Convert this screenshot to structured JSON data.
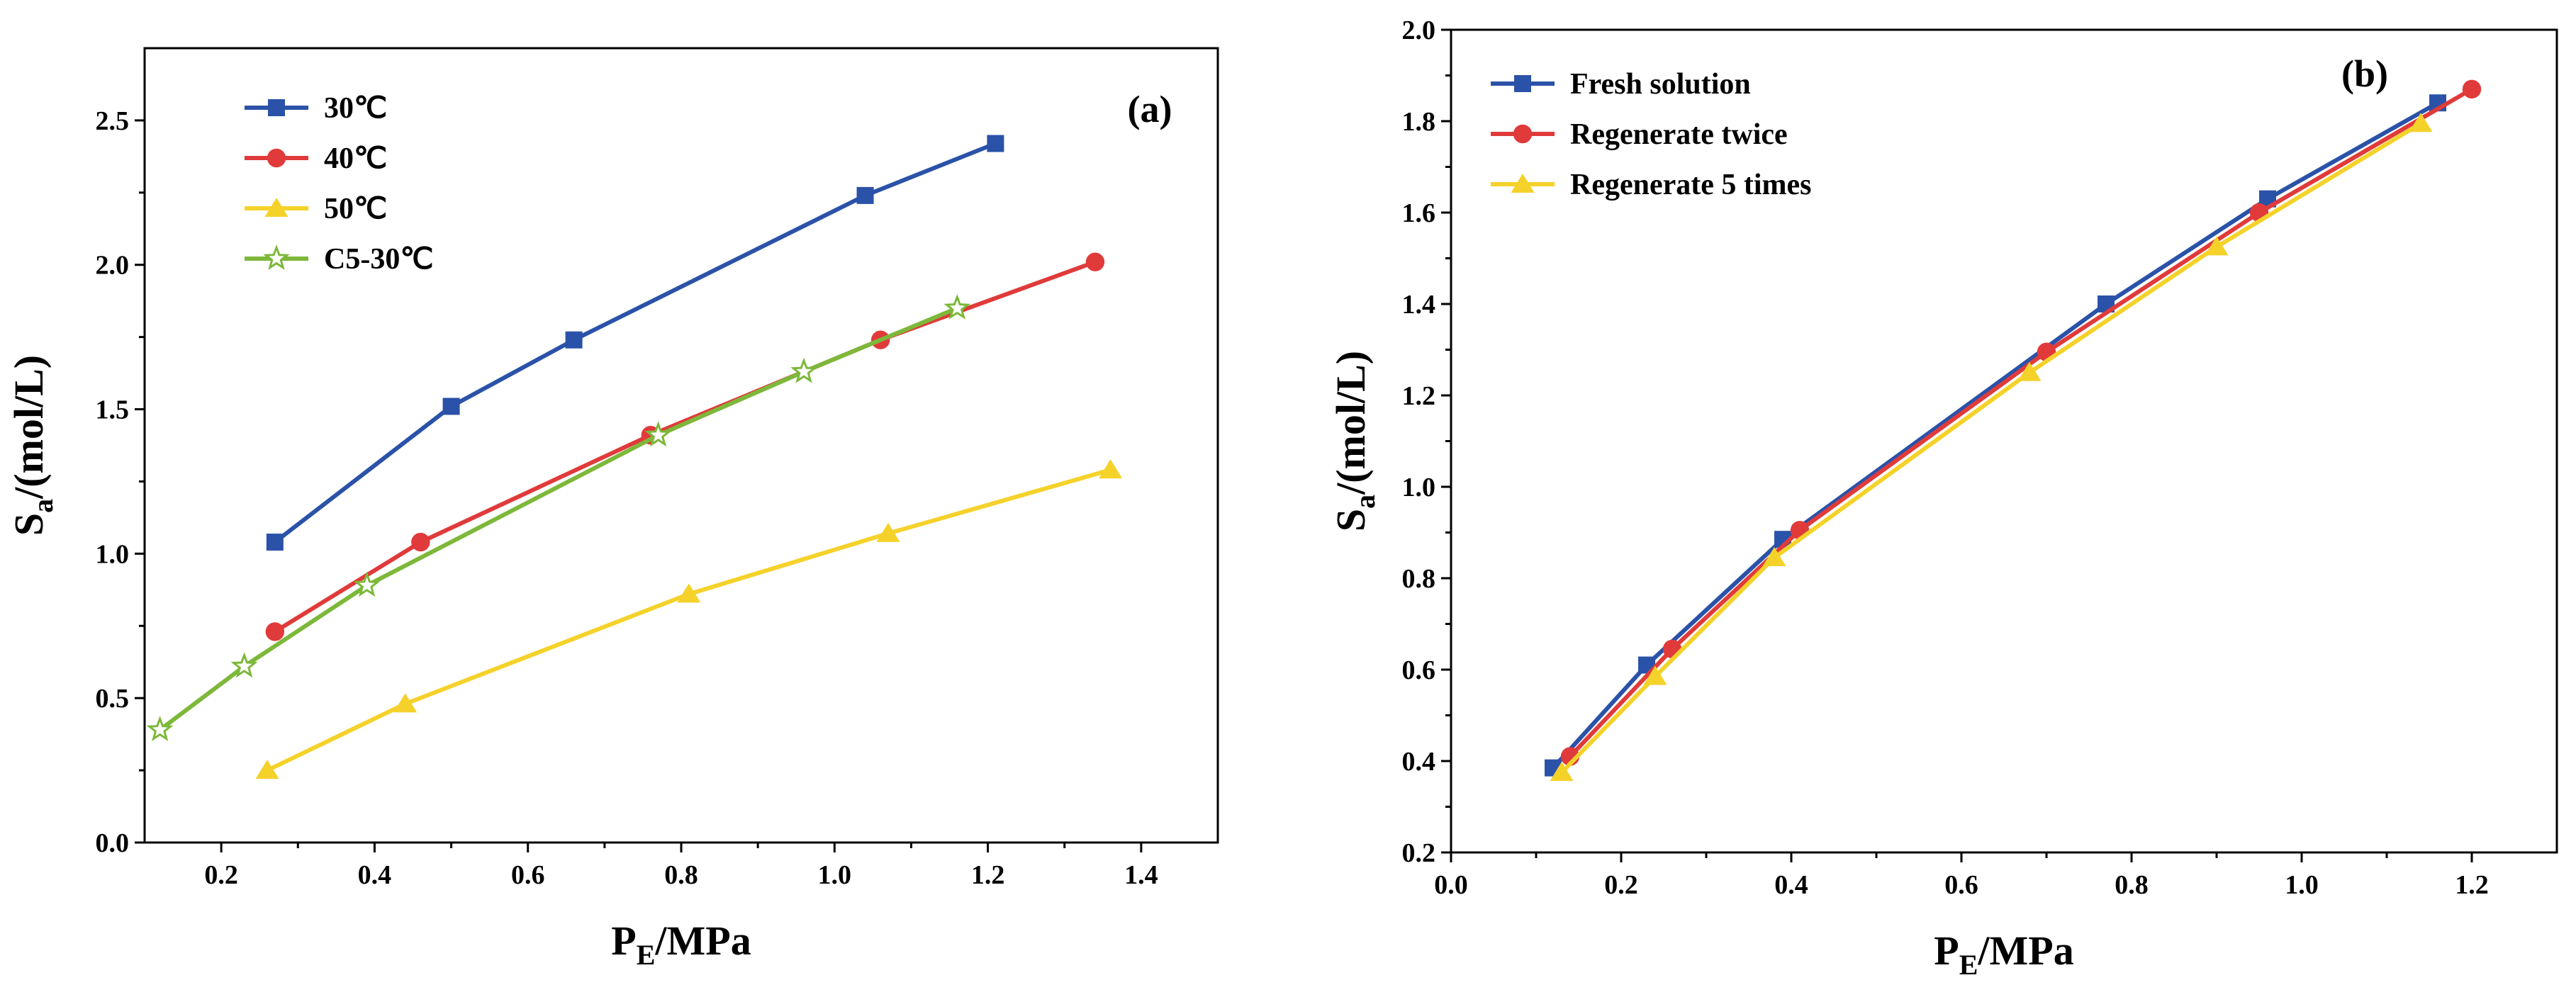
{
  "chart_data": [
    {
      "type": "line",
      "panel_label": "(a)",
      "xlabel": {
        "main": "P",
        "sub": "E",
        "rest": "/MPa"
      },
      "ylabel": {
        "main": "S",
        "sub": "a",
        "rest": "/(mol/L)"
      },
      "xlim": [
        0.1,
        1.5
      ],
      "ylim": [
        0.0,
        2.75
      ],
      "xticks": [
        "0.2",
        "0.4",
        "0.6",
        "0.8",
        "1.0",
        "1.2",
        "1.4"
      ],
      "yticks": [
        "0.0",
        "0.5",
        "1.0",
        "1.5",
        "2.0",
        "2.5"
      ],
      "legend_position": "top-left",
      "series": [
        {
          "name": "30℃",
          "color": "#2a52a8",
          "marker": "square",
          "x": [
            0.27,
            0.5,
            0.66,
            1.04,
            1.21
          ],
          "y": [
            1.04,
            1.51,
            1.74,
            2.24,
            2.42
          ]
        },
        {
          "name": "40℃",
          "color": "#e03a3a",
          "marker": "circle",
          "x": [
            0.27,
            0.46,
            0.76,
            1.06,
            1.34
          ],
          "y": [
            0.73,
            1.04,
            1.41,
            1.74,
            2.01
          ]
        },
        {
          "name": "50℃",
          "color": "#f5d22a",
          "marker": "triangle",
          "x": [
            0.26,
            0.44,
            0.81,
            1.07,
            1.36
          ],
          "y": [
            0.25,
            0.48,
            0.86,
            1.07,
            1.29
          ]
        },
        {
          "name": "C5-30℃",
          "color": "#7db83a",
          "marker": "star",
          "x": [
            0.12,
            0.23,
            0.39,
            0.77,
            0.96,
            1.16
          ],
          "y": [
            0.39,
            0.61,
            0.89,
            1.41,
            1.63,
            1.85
          ]
        }
      ]
    },
    {
      "type": "line",
      "panel_label": "(b)",
      "xlabel": {
        "main": "P",
        "sub": "E",
        "rest": "/MPa"
      },
      "ylabel": {
        "main": "S",
        "sub": "a",
        "rest": "/(mol/L)"
      },
      "xlim": [
        0.0,
        1.3
      ],
      "ylim": [
        0.2,
        2.0
      ],
      "xticks": [
        "0.0",
        "0.2",
        "0.4",
        "0.6",
        "0.8",
        "1.0",
        "1.2"
      ],
      "yticks": [
        "0.2",
        "0.4",
        "0.6",
        "0.8",
        "1.0",
        "1.2",
        "1.4",
        "1.6",
        "1.8",
        "2.0"
      ],
      "legend_position": "top-left",
      "series": [
        {
          "name": "Fresh solution",
          "color": "#2a52a8",
          "marker": "square",
          "x": [
            0.12,
            0.23,
            0.39,
            0.77,
            0.96,
            1.16
          ],
          "y": [
            0.385,
            0.61,
            0.885,
            1.4,
            1.63,
            1.84
          ]
        },
        {
          "name": "Regenerate twice",
          "color": "#e03a3a",
          "marker": "circle",
          "x": [
            0.14,
            0.26,
            0.41,
            0.7,
            0.95,
            1.2
          ],
          "y": [
            0.41,
            0.645,
            0.905,
            1.295,
            1.6,
            1.87
          ]
        },
        {
          "name": "Regenerate 5 times",
          "color": "#f5d22a",
          "marker": "triangle",
          "x": [
            0.13,
            0.24,
            0.38,
            0.68,
            0.9,
            1.14
          ],
          "y": [
            0.375,
            0.585,
            0.845,
            1.25,
            1.525,
            1.795
          ]
        }
      ]
    }
  ]
}
